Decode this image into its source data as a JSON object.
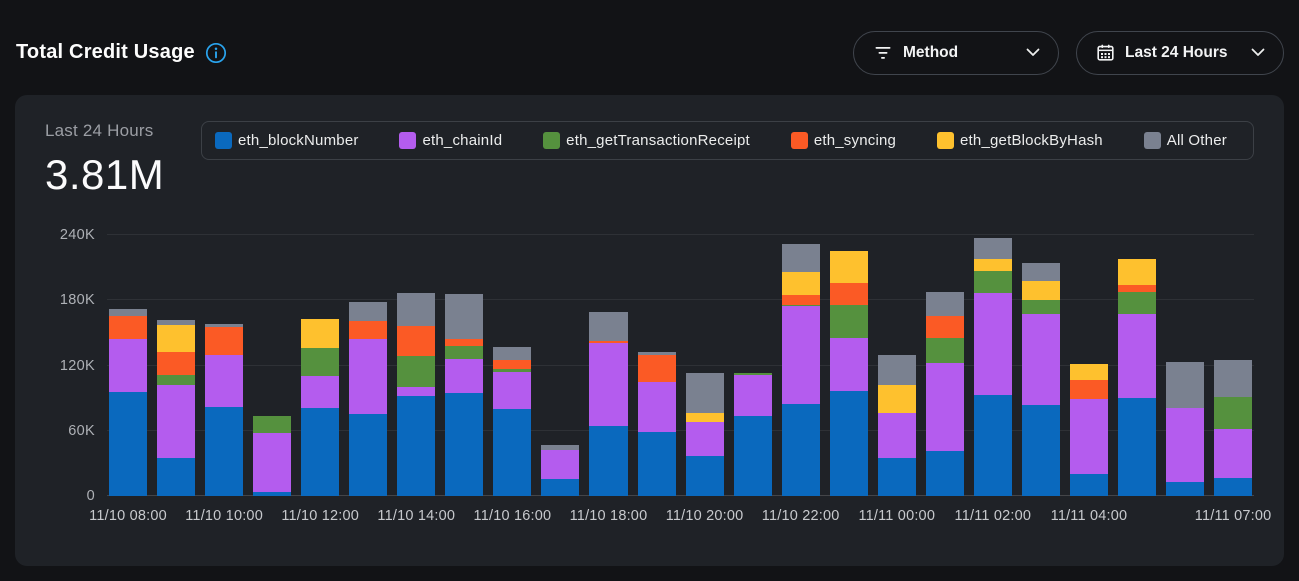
{
  "header": {
    "title": "Total Credit Usage",
    "filters": {
      "method": {
        "label": "Method",
        "icon": "filter-icon"
      },
      "time_range": {
        "label": "Last 24 Hours",
        "icon": "calendar-icon"
      }
    }
  },
  "card": {
    "period_label": "Last 24 Hours",
    "total_value": "3.81M"
  },
  "colors": {
    "accent_info": "#2aa4ee",
    "page_bg": "#121316",
    "card_bg": "#1f2227"
  },
  "chart_data": {
    "type": "bar",
    "stacked": true,
    "title": "Total Credit Usage — Last 24 Hours",
    "values_unit": "thousands of credits (K)",
    "ylim": [
      0,
      240
    ],
    "y_ticks": [
      "0",
      "60K",
      "120K",
      "180K",
      "240K"
    ],
    "grid": true,
    "legend_position": "top-right",
    "x_tick_labels": [
      "11/10 08:00",
      "",
      "11/10 10:00",
      "",
      "11/10 12:00",
      "",
      "11/10 14:00",
      "",
      "11/10 16:00",
      "",
      "11/10 18:00",
      "",
      "11/10 20:00",
      "",
      "11/10 22:00",
      "",
      "11/11 00:00",
      "",
      "11/11 02:00",
      "",
      "11/11 04:00",
      "",
      "",
      "11/11 07:00"
    ],
    "series": [
      {
        "name": "eth_blockNumber",
        "color": "#0a69be",
        "values": [
          96,
          35,
          82,
          4,
          81,
          75,
          92,
          95,
          80,
          16,
          64,
          59,
          37,
          74,
          85,
          97,
          35,
          41,
          93,
          84,
          20,
          90,
          13,
          17
        ]
      },
      {
        "name": "eth_chainId",
        "color": "#b45cee",
        "values": [
          48,
          67,
          48,
          54,
          29,
          69,
          8,
          31,
          34,
          26,
          77,
          46,
          31,
          37,
          90,
          48,
          41,
          81,
          94,
          83,
          69,
          77,
          68,
          45
        ]
      },
      {
        "name": "eth_getTransactionReceipt",
        "color": "#55913e",
        "values": [
          0,
          9,
          0,
          16,
          26,
          0,
          29,
          12,
          3,
          0,
          0,
          0,
          0,
          2,
          1,
          31,
          0,
          23,
          20,
          13,
          0,
          21,
          0,
          29
        ]
      },
      {
        "name": "eth_syncing",
        "color": "#fb5a25",
        "values": [
          22,
          21,
          25,
          0,
          0,
          17,
          27,
          6,
          8,
          0,
          2,
          25,
          0,
          0,
          9,
          20,
          0,
          21,
          0,
          0,
          18,
          6,
          0,
          0
        ]
      },
      {
        "name": "eth_getBlockByHash",
        "color": "#fec12e",
        "values": [
          0,
          25,
          0,
          0,
          27,
          0,
          0,
          0,
          0,
          0,
          0,
          0,
          8,
          0,
          21,
          29,
          26,
          0,
          11,
          18,
          14,
          24,
          0,
          0
        ]
      },
      {
        "name": "All Other",
        "color": "#7a8190",
        "values": [
          6,
          5,
          3,
          0,
          0,
          17,
          31,
          42,
          12,
          5,
          26,
          2,
          37,
          0,
          26,
          0,
          28,
          22,
          19,
          16,
          0,
          0,
          42,
          34
        ]
      }
    ]
  }
}
